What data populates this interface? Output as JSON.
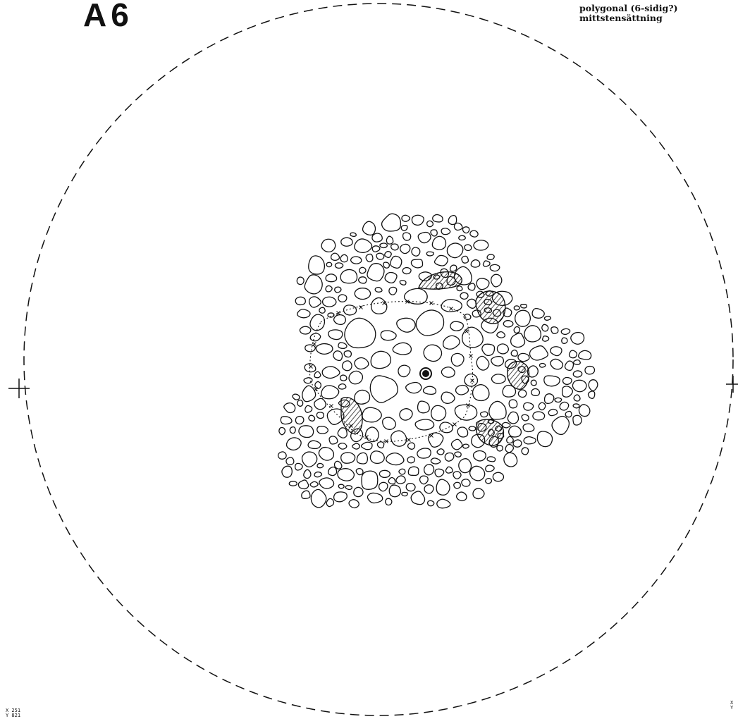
{
  "title": "A6",
  "note": {
    "line1": "polygonal (6-sidig?)",
    "line2": "mittstensättning"
  },
  "coords_left": {
    "x": "X 251",
    "y": "Y 821"
  },
  "coords_right": {
    "x": "X",
    "y": "Y"
  },
  "colors": {
    "ink": "#111111",
    "paper": "#ffffff",
    "hatch": "#222222"
  }
}
